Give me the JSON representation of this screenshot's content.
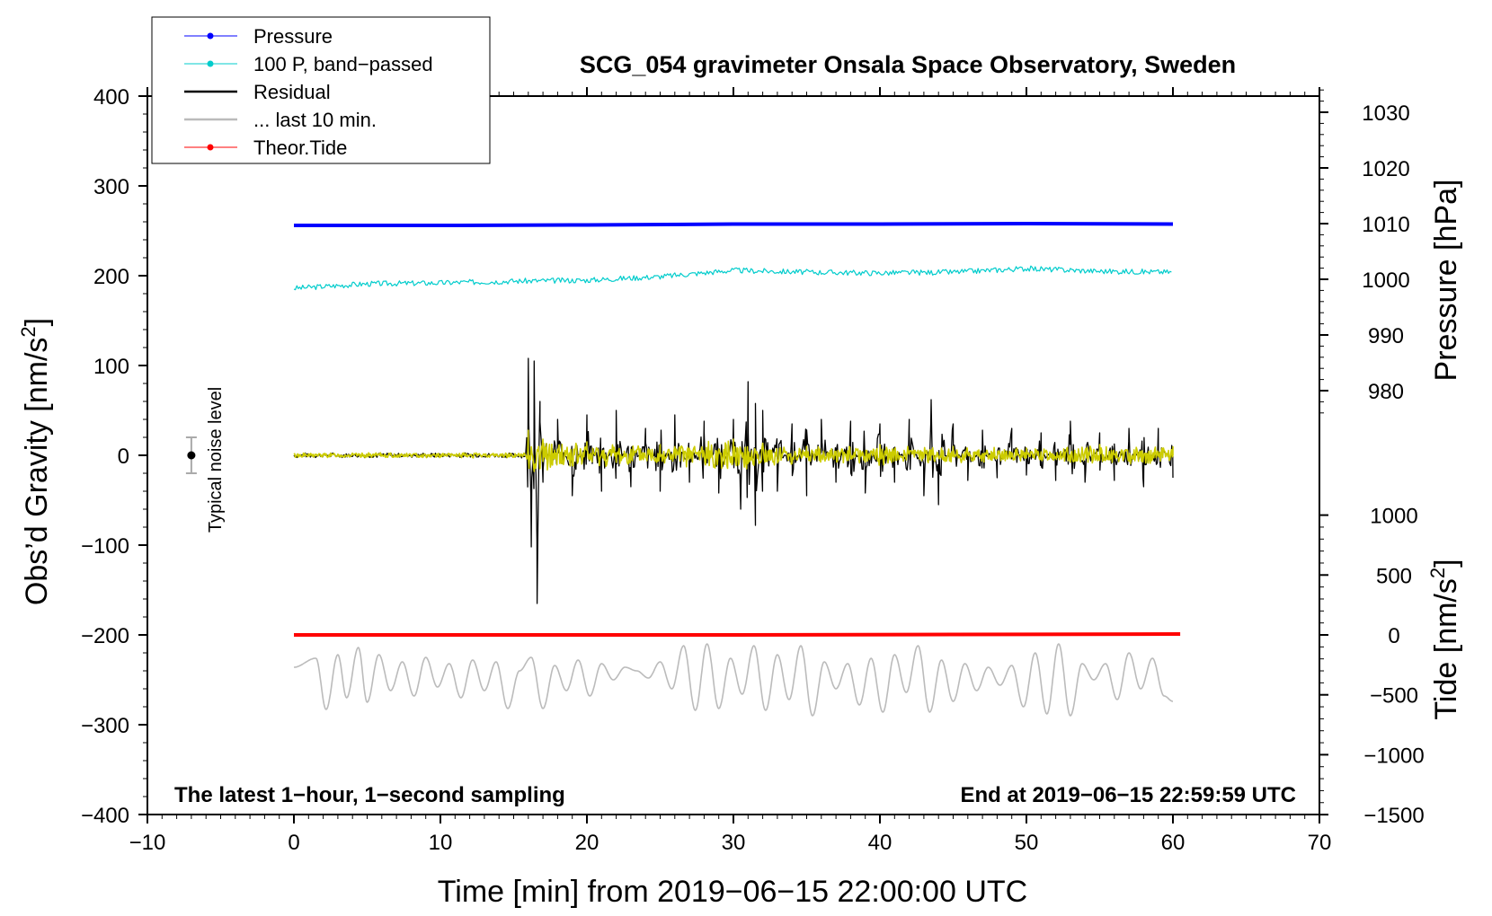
{
  "chart_data": {
    "type": "line",
    "title": "SCG_054 gravimeter Onsala Space Observatory, Sweden",
    "xlabel": "Time [min] from 2019−06−15 22:00:00 UTC",
    "ylabel_left": "Obs’d Gravity [nm/s",
    "ylabel_left_sup": "2",
    "ylabel_left_end": "]",
    "ylabel_right_pressure": "Pressure [hPa]",
    "ylabel_right_tide": "Tide [nm/s",
    "ylabel_right_tide_sup": "2",
    "ylabel_right_tide_end": "]",
    "xlim": [
      -10,
      70
    ],
    "ylim": [
      -400,
      400
    ],
    "x_ticks": [
      -10,
      0,
      10,
      20,
      30,
      40,
      50,
      60,
      70
    ],
    "x_tick_labels": [
      "−10",
      "0",
      "10",
      "20",
      "30",
      "40",
      "50",
      "60",
      "70"
    ],
    "y_ticks": [
      400,
      300,
      200,
      100,
      0,
      -100,
      -200,
      -300,
      -400
    ],
    "y_tick_labels": [
      "400",
      "300",
      "200",
      "100",
      "0",
      "−100",
      "−200",
      "−300",
      "−400"
    ],
    "pressure_axis": {
      "ticks": [
        1030,
        1020,
        1010,
        1000,
        990,
        980
      ],
      "tick_labels": [
        "1030",
        "1020",
        "1010",
        "1000",
        "990",
        "980"
      ],
      "ref": {
        "value": 1010,
        "gravity": 258
      },
      "gravity_per_hpa": 6.2
    },
    "tide_axis": {
      "ticks": [
        1000,
        500,
        0,
        -500,
        -1000,
        -1500
      ],
      "tick_labels": [
        "1000",
        "500",
        "0",
        "−500",
        "−1000",
        "−1500"
      ],
      "ref": {
        "value": 0,
        "gravity": -200
      },
      "gravity_per_unit": 0.1334
    },
    "legend": [
      {
        "label": "Pressure",
        "color": "#0000ff",
        "marker": true
      },
      {
        "label": "100 P, band−passed",
        "color": "#00cccc",
        "marker": true
      },
      {
        "label": "Residual",
        "color": "#000000",
        "marker": false
      },
      {
        "label": "... last 10 min.",
        "color": "#bbbbbb",
        "marker": false
      },
      {
        "label": "Theor.Tide",
        "color": "#ff0000",
        "marker": true
      }
    ],
    "annotations": {
      "left": "The latest 1−hour, 1−second sampling",
      "right": "End at 2019−06−15 22:59:59 UTC",
      "noise": "Typical noise level"
    },
    "noise_level": {
      "x": -7,
      "value": 0,
      "half_range": 20
    },
    "series": [
      {
        "name": "Pressure",
        "color": "#0000ff",
        "x": [
          0,
          10,
          20,
          30,
          40,
          50,
          60
        ],
        "values": [
          256,
          256,
          256.5,
          257.5,
          257.5,
          258,
          257.5
        ]
      },
      {
        "name": "100 P, band−passed",
        "color": "#00cccc",
        "x": [
          0,
          5,
          10,
          15,
          20,
          25,
          30,
          35,
          40,
          45,
          50,
          55,
          60
        ],
        "values": [
          186,
          191,
          192,
          194,
          195,
          199,
          206,
          204,
          203,
          204,
          208,
          205,
          204
        ]
      },
      {
        "name": "Theor.Tide",
        "color": "#ff0000",
        "x": [
          0,
          15,
          30,
          45,
          60.5
        ],
        "values": [
          -200,
          -200,
          -200,
          -199.5,
          -199
        ]
      },
      {
        "name": "Residual",
        "color": "#000000",
        "x": [
          0,
          10,
          15.8,
          16,
          16.2,
          16.4,
          16.6,
          16.8,
          17,
          18,
          19,
          20,
          21,
          22,
          23,
          24,
          25,
          26,
          27,
          28,
          29,
          30,
          30.5,
          31,
          31.5,
          32,
          33,
          34,
          35,
          36,
          37,
          38,
          39,
          40,
          41,
          42,
          43,
          43.5,
          44,
          45,
          46,
          47,
          48,
          49,
          50,
          51,
          52,
          53,
          54,
          55,
          56,
          57,
          58,
          59,
          60
        ],
        "values": [
          2,
          2,
          0,
          108,
          -102,
          105,
          -165,
          60,
          -30,
          40,
          -45,
          45,
          -40,
          50,
          -35,
          30,
          -40,
          45,
          -30,
          38,
          -42,
          40,
          -60,
          82,
          -78,
          50,
          -40,
          35,
          -45,
          40,
          -30,
          38,
          -42,
          35,
          -30,
          40,
          -45,
          62,
          -55,
          35,
          -28,
          28,
          -25,
          30,
          -22,
          25,
          -28,
          38,
          -30,
          25,
          -28,
          30,
          -35,
          30,
          -25
        ]
      },
      {
        "name": "Residual (filtered)",
        "color": "#cccc00",
        "x": [
          0,
          15.8,
          16,
          17,
          20,
          25,
          30,
          35,
          40,
          45,
          50,
          55,
          60
        ],
        "values": [
          1,
          0,
          28,
          18,
          15,
          12,
          18,
          10,
          12,
          10,
          8,
          12,
          10
        ]
      },
      {
        "name": "... last 10 min.",
        "color": "#bbbbbb",
        "x": [
          0,
          1.5,
          2.2,
          3,
          3.6,
          4.4,
          5,
          5.8,
          6.6,
          7.4,
          8.2,
          9,
          9.8,
          10.6,
          11.4,
          12.2,
          13,
          13.8,
          14.6,
          15.4,
          16.2,
          17,
          17.8,
          18.6,
          19.4,
          20.2,
          21,
          21.8,
          22.6,
          23.4,
          24.2,
          25,
          25.8,
          26.6,
          27.4,
          28.2,
          29,
          29.8,
          30.6,
          31.4,
          32.2,
          33,
          33.8,
          34.6,
          35.4,
          36.2,
          37,
          37.8,
          38.6,
          39.4,
          40.2,
          41,
          41.8,
          42.6,
          43.4,
          44.2,
          45,
          45.8,
          46.6,
          47.4,
          48.2,
          49,
          49.8,
          50.6,
          51.4,
          52.2,
          53,
          53.8,
          54.6,
          55.4,
          56.2,
          57,
          57.8,
          58.6,
          59.4,
          60
        ],
        "values": [
          -236,
          -226,
          -283,
          -222,
          -270,
          -214,
          -275,
          -222,
          -262,
          -230,
          -268,
          -225,
          -258,
          -232,
          -270,
          -228,
          -262,
          -230,
          -282,
          -240,
          -225,
          -282,
          -234,
          -262,
          -228,
          -268,
          -232,
          -250,
          -236,
          -240,
          -248,
          -230,
          -260,
          -212,
          -284,
          -210,
          -282,
          -226,
          -266,
          -212,
          -284,
          -222,
          -272,
          -212,
          -290,
          -230,
          -260,
          -232,
          -278,
          -226,
          -286,
          -222,
          -264,
          -212,
          -286,
          -228,
          -274,
          -232,
          -262,
          -236,
          -256,
          -234,
          -280,
          -220,
          -288,
          -210,
          -290,
          -232,
          -250,
          -232,
          -272,
          -220,
          -260,
          -226,
          -268,
          -274
        ]
      }
    ]
  }
}
